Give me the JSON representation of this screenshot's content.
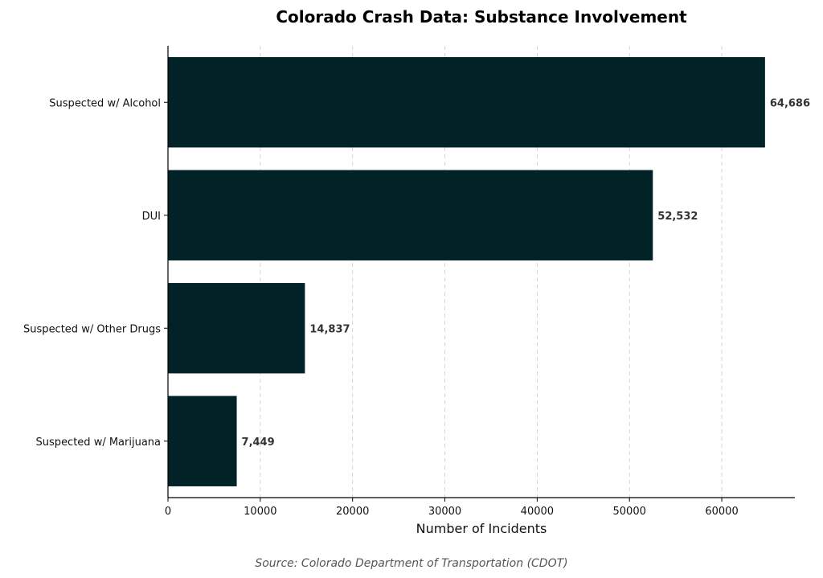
{
  "chart_data": {
    "type": "bar",
    "orientation": "horizontal",
    "title": "Colorado Crash Data: Substance Involvement",
    "xlabel": "Number of Incidents",
    "ylabel": "",
    "source": "Source: Colorado Department of Transportation (CDOT)",
    "categories": [
      "Suspected w/ Alcohol",
      "DUI",
      "Suspected w/ Other Drugs",
      "Suspected w/ Marijuana"
    ],
    "values": [
      64686,
      52532,
      14837,
      7449
    ],
    "value_labels": [
      "64,686",
      "52,532",
      "14,837",
      "7,449"
    ],
    "xlim": [
      0,
      67920
    ],
    "xticks": [
      0,
      10000,
      20000,
      30000,
      40000,
      50000,
      60000
    ],
    "xtick_labels": [
      "0",
      "10000",
      "20000",
      "30000",
      "40000",
      "50000",
      "60000"
    ],
    "grid": "x-dashed",
    "bar_color": "#012226"
  }
}
